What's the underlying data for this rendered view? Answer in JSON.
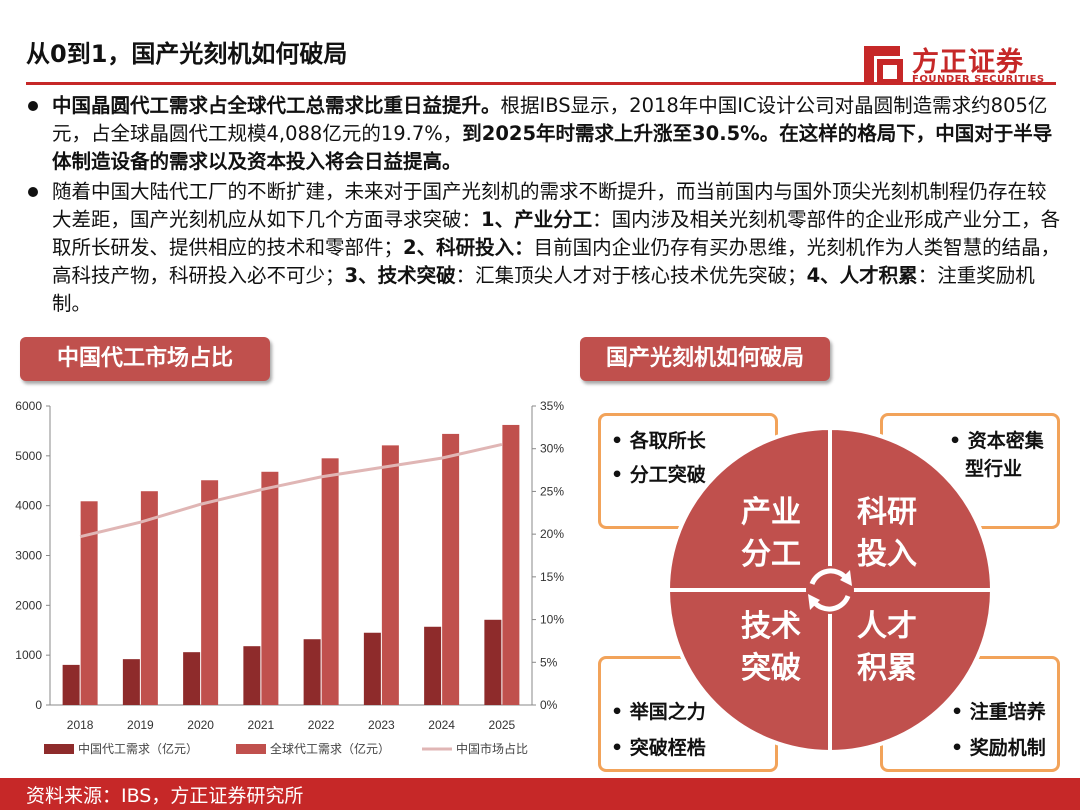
{
  "header": {
    "title": "从0到1，国产光刻机如何破局",
    "logo_cn": "方正证券",
    "logo_en": "FOUNDER SECURITIES"
  },
  "bullets": [
    {
      "b1": "中国晶圆代工需求占全球代工总需求比重日益提升。",
      "t1": "根据IBS显示，2018年中国IC设计公司对晶圆制造需求约805亿元，占全球晶圆代工规模4,088亿元的19.7%，",
      "b2": "到2025年时需求上升涨至30.5%。在这样的格局下，中国对于半导体制造设备的需求以及资本投入将会日益提高。"
    },
    {
      "t1": "随着中国大陆代工厂的不断扩建，未来对于国产光刻机的需求不断提升，而当前国内与国外顶尖光刻机制程仍存在较大差距，国产光刻机应从如下几个方面寻求突破：",
      "b1": "1、产业分工",
      "t2": "：国内涉及相关光刻机零部件的企业形成产业分工，各取所长研发、提供相应的技术和零部件；",
      "b2": "2、科研投入：",
      "t3": "目前国内企业仍存有买办思维，光刻机作为人类智慧的结晶，高科技产物，科研投入必不可少；",
      "b3": "3、技术突破",
      "t4": "：汇集顶尖人才对于核心技术优先突破；",
      "b4": "4、人才积累",
      "t5": "：注重奖励机制。"
    }
  ],
  "tags": {
    "left": "中国代工市场占比",
    "right": "国产光刻机如何破局"
  },
  "chart_data": {
    "type": "bar",
    "categories": [
      "2018",
      "2019",
      "2020",
      "2021",
      "2022",
      "2023",
      "2024",
      "2025"
    ],
    "series": [
      {
        "name": "中国代工需求（亿元）",
        "type": "bar",
        "axis": "left",
        "color": "#8e2b2b",
        "values": [
          805,
          920,
          1060,
          1180,
          1320,
          1450,
          1570,
          1710
        ]
      },
      {
        "name": "全球代工需求（亿元）",
        "type": "bar",
        "axis": "left",
        "color": "#c0504d",
        "values": [
          4088,
          4290,
          4510,
          4680,
          4950,
          5210,
          5440,
          5620
        ]
      },
      {
        "name": "中国市场占比",
        "type": "line",
        "axis": "right",
        "color": "#e0b6b5",
        "values": [
          19.7,
          21.4,
          23.5,
          25.2,
          26.7,
          27.8,
          28.9,
          30.5
        ]
      }
    ],
    "y_left": {
      "min": 0,
      "max": 6000,
      "ticks": [
        "0",
        "1000",
        "2000",
        "3000",
        "4000",
        "5000",
        "6000"
      ]
    },
    "y_right": {
      "min": 0,
      "max": 35,
      "ticks": [
        "0%",
        "5%",
        "10%",
        "15%",
        "20%",
        "25%",
        "30%",
        "35%"
      ]
    },
    "grid": false,
    "legend_position": "bottom"
  },
  "diagram": {
    "quadrants": [
      {
        "line1": "产业",
        "line2": "分工"
      },
      {
        "line1": "科研",
        "line2": "投入"
      },
      {
        "line1": "技术",
        "line2": "突破"
      },
      {
        "line1": "人才",
        "line2": "积累"
      }
    ],
    "boxes": {
      "top_left": [
        "• 各取所长",
        "• 分工突破"
      ],
      "top_right": [
        "• 资本密集",
        "型行业"
      ],
      "bottom_left": [
        "• 举国之力",
        "• 突破桎梏"
      ],
      "bottom_right": [
        "• 注重培养",
        "• 奖励机制"
      ]
    },
    "colors": {
      "quadrant": "#c0504d",
      "box_border": "#f2a35a"
    }
  },
  "footer": {
    "source": "资料来源：IBS，方正证券研究所"
  }
}
